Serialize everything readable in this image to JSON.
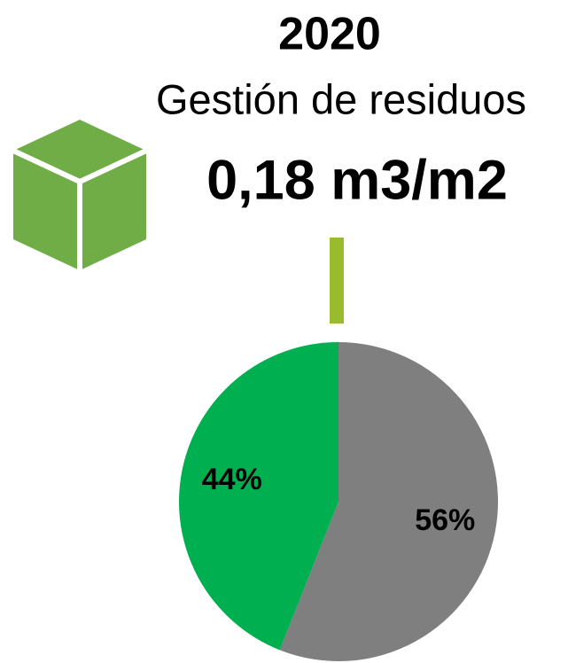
{
  "chart_data": {
    "type": "pie",
    "title": "2020",
    "subtitle": "Gestión de residuos",
    "annotation": "0,18 m3/m2",
    "values": [
      56,
      44
    ],
    "value_labels": [
      "56%",
      "44%"
    ],
    "colors": [
      "#7f7f7f",
      "#00b050"
    ]
  }
}
